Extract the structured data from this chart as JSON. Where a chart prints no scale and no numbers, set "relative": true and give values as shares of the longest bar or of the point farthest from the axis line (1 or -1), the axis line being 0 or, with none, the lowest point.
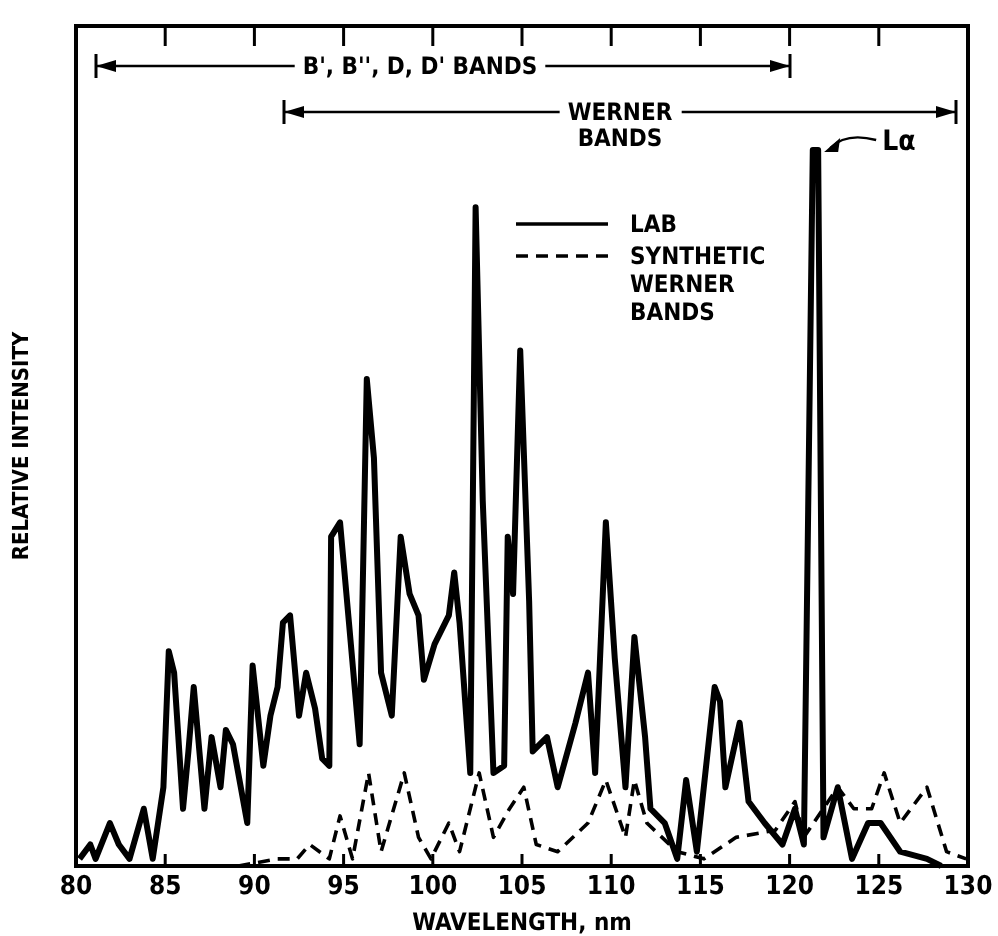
{
  "chart_data": {
    "type": "line",
    "relative": true,
    "xlabel": "WAVELENGTH, nm",
    "ylabel": "RELATIVE INTENSITY",
    "xlim": [
      80,
      130
    ],
    "xticks": [
      80,
      85,
      90,
      95,
      100,
      105,
      110,
      115,
      120,
      125,
      130
    ],
    "legend": "top right",
    "annotations": [
      "B', B'', D, D' BANDS",
      "WERNER BANDS",
      {
        "text": "Lα",
        "x": 121.6,
        "y": 1
      }
    ],
    "series": [
      {
        "name": "LAB",
        "color": "#000000",
        "line_style": "solid",
        "x": [
          80.2,
          80.8,
          81.1,
          81.9,
          82.4,
          83.0,
          83.8,
          84.3,
          84.9,
          85.2,
          85.5,
          86.0,
          86.3,
          86.6,
          87.2,
          87.6,
          88.1,
          88.4,
          88.8,
          89.6,
          89.9,
          90.5,
          90.9,
          91.3,
          91.6,
          92.0,
          92.5,
          92.9,
          93.4,
          93.8,
          94.2,
          94.3,
          94.8,
          95.3,
          95.9,
          96.3,
          96.7,
          97.1,
          97.7,
          98.2,
          98.7,
          99.2,
          99.5,
          100.1,
          100.9,
          101.2,
          101.5,
          102.1,
          102.4,
          102.8,
          103.4,
          104.0,
          104.2,
          104.5,
          104.9,
          105.4,
          105.6,
          106.4,
          107.0,
          108.0,
          108.7,
          109.1,
          109.7,
          110.2,
          110.8,
          111.3,
          111.9,
          112.2,
          113.0,
          113.7,
          114.2,
          114.8,
          115.8,
          116.1,
          116.4,
          117.2,
          117.7,
          118.6,
          119.6,
          120.3,
          120.8,
          121.3,
          121.6,
          121.9,
          122.7,
          123.5,
          124.4,
          125.1,
          126.2,
          127.7,
          128.5
        ],
        "values": [
          0.01,
          0.03,
          0.01,
          0.06,
          0.03,
          0.01,
          0.08,
          0.01,
          0.11,
          0.3,
          0.27,
          0.08,
          0.16,
          0.25,
          0.08,
          0.18,
          0.11,
          0.19,
          0.17,
          0.06,
          0.28,
          0.14,
          0.21,
          0.25,
          0.34,
          0.35,
          0.21,
          0.27,
          0.22,
          0.15,
          0.14,
          0.46,
          0.48,
          0.34,
          0.17,
          0.68,
          0.57,
          0.27,
          0.21,
          0.46,
          0.38,
          0.35,
          0.26,
          0.31,
          0.35,
          0.41,
          0.34,
          0.13,
          0.92,
          0.51,
          0.13,
          0.14,
          0.46,
          0.38,
          0.72,
          0.37,
          0.16,
          0.18,
          0.11,
          0.2,
          0.27,
          0.13,
          0.48,
          0.29,
          0.11,
          0.32,
          0.18,
          0.08,
          0.06,
          0.01,
          0.12,
          0.02,
          0.25,
          0.23,
          0.11,
          0.2,
          0.09,
          0.06,
          0.03,
          0.08,
          0.03,
          1.0,
          1.0,
          0.04,
          0.11,
          0.01,
          0.06,
          0.06,
          0.02,
          0.01,
          0
        ]
      },
      {
        "name": "SYNTHETIC WERNER BANDS",
        "color": "#000000",
        "line_style": "dashed",
        "x": [
          89.1,
          91.3,
          92.4,
          93.1,
          94.2,
          94.8,
          95.5,
          96.4,
          97.1,
          98.4,
          99.2,
          99.9,
          100.9,
          101.5,
          102.6,
          103.4,
          104.3,
          105.1,
          105.8,
          107.0,
          108.7,
          109.7,
          110.8,
          111.3,
          112.0,
          113.7,
          115.2,
          117.0,
          119.2,
          120.3,
          120.8,
          122.7,
          123.6,
          124.6,
          125.3,
          126.2,
          127.7,
          128.8,
          129.9
        ],
        "values": [
          0,
          0.01,
          0.01,
          0.03,
          0.01,
          0.07,
          0.01,
          0.13,
          0.02,
          0.13,
          0.04,
          0.01,
          0.06,
          0.02,
          0.13,
          0.04,
          0.08,
          0.11,
          0.03,
          0.02,
          0.06,
          0.12,
          0.04,
          0.12,
          0.06,
          0.02,
          0.01,
          0.04,
          0.05,
          0.09,
          0.04,
          0.11,
          0.08,
          0.08,
          0.13,
          0.06,
          0.11,
          0.02,
          0.01
        ]
      }
    ]
  }
}
